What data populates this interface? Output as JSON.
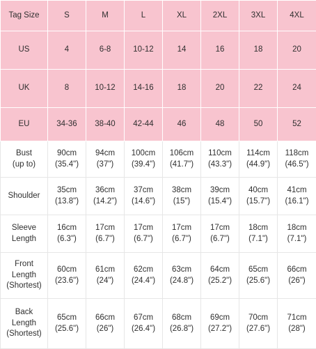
{
  "size_chart": {
    "header_label": "Tag Size",
    "sizes": [
      "S",
      "M",
      "L",
      "XL",
      "2XL",
      "3XL",
      "4XL"
    ],
    "conversion_rows": [
      {
        "label": "US",
        "values": [
          "4",
          "6-8",
          "10-12",
          "14",
          "16",
          "18",
          "20"
        ]
      },
      {
        "label": "UK",
        "values": [
          "8",
          "10-12",
          "14-16",
          "18",
          "20",
          "22",
          "24"
        ]
      },
      {
        "label": "EU",
        "values": [
          "34-36",
          "38-40",
          "42-44",
          "46",
          "48",
          "50",
          "52"
        ]
      }
    ],
    "measurement_rows": [
      {
        "label": "Bust\n(up to)",
        "values": [
          [
            "90cm",
            "(35.4\")"
          ],
          [
            "94cm",
            "(37\")"
          ],
          [
            "100cm",
            "(39.4\")"
          ],
          [
            "106cm",
            "(41.7\")"
          ],
          [
            "110cm",
            "(43.3\")"
          ],
          [
            "114cm",
            "(44.9\")"
          ],
          [
            "118cm",
            "(46.5\")"
          ]
        ]
      },
      {
        "label": "Shoulder",
        "values": [
          [
            "35cm",
            "(13.8\")"
          ],
          [
            "36cm",
            "(14.2\")"
          ],
          [
            "37cm",
            "(14.6\")"
          ],
          [
            "38cm",
            "(15\")"
          ],
          [
            "39cm",
            "(15.4\")"
          ],
          [
            "40cm",
            "(15.7\")"
          ],
          [
            "41cm",
            "(16.1\")"
          ]
        ]
      },
      {
        "label": "Sleeve\nLength",
        "values": [
          [
            "16cm",
            "(6.3\")"
          ],
          [
            "17cm",
            "(6.7\")"
          ],
          [
            "17cm",
            "(6.7\")"
          ],
          [
            "17cm",
            "(6.7\")"
          ],
          [
            "17cm",
            "(6.7\")"
          ],
          [
            "18cm",
            "(7.1\")"
          ],
          [
            "18cm",
            "(7.1\")"
          ]
        ]
      },
      {
        "label": "Front\nLength\n(Shortest)",
        "values": [
          [
            "60cm",
            "(23.6\")"
          ],
          [
            "61cm",
            "(24\")"
          ],
          [
            "62cm",
            "(24.4\")"
          ],
          [
            "63cm",
            "(24.8\")"
          ],
          [
            "64cm",
            "(25.2\")"
          ],
          [
            "65cm",
            "(25.6\")"
          ],
          [
            "66cm",
            "(26\")"
          ]
        ]
      },
      {
        "label": "Back\nLength\n(Shortest)",
        "values": [
          [
            "65cm",
            "(25.6\")"
          ],
          [
            "66cm",
            "(26\")"
          ],
          [
            "67cm",
            "(26.4\")"
          ],
          [
            "68cm",
            "(26.8\")"
          ],
          [
            "69cm",
            "(27.2\")"
          ],
          [
            "70cm",
            "(27.6\")"
          ],
          [
            "71cm",
            "(28\")"
          ]
        ]
      }
    ],
    "colors": {
      "header_band": "#f8c4cf",
      "body": "#ffffff",
      "text": "#2f2f2f",
      "grid": "#e6e6e6"
    }
  }
}
